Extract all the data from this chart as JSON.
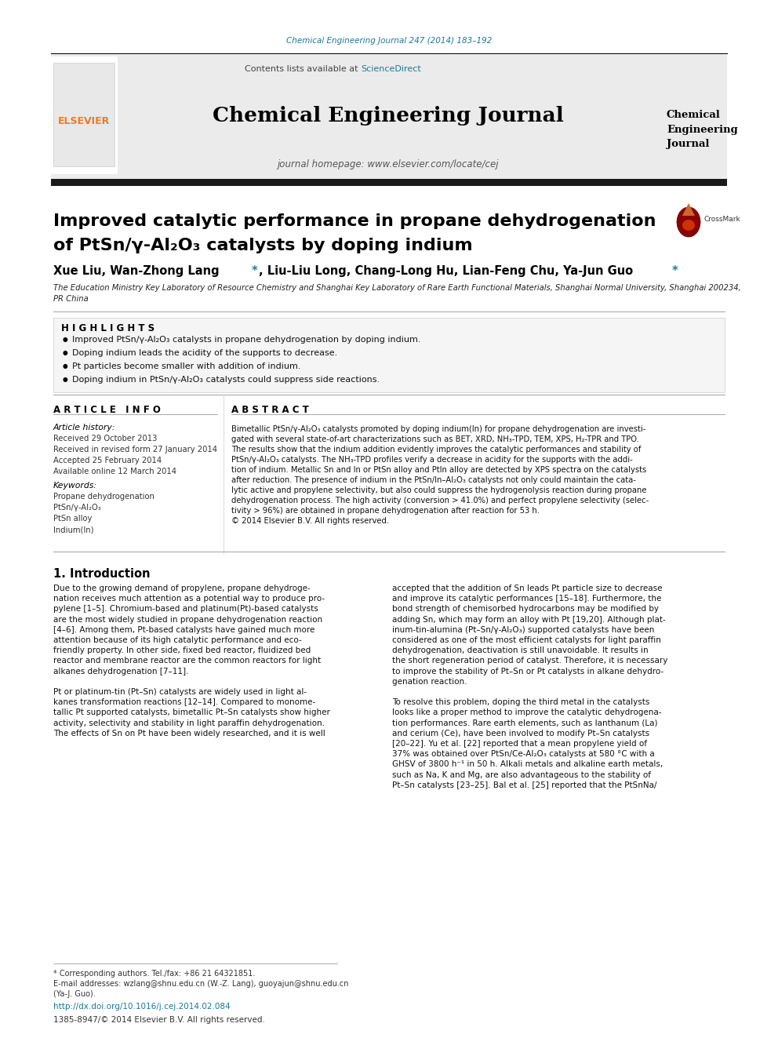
{
  "journal_ref": "Chemical Engineering Journal 247 (2014) 183–192",
  "journal_ref_color": "#1a7a9a",
  "contents_text": "Contents lists available at ",
  "sciencedirect_text": "ScienceDirect",
  "sciencedirect_color": "#1a7a9a",
  "journal_name": "Chemical Engineering Journal",
  "journal_homepage": "journal homepage: www.elsevier.com/locate/cej",
  "journal_logo_text": "Chemical\nEngineering\nJournal",
  "elsevier_color": "#f47920",
  "title_line1": "Improved catalytic performance in propane dehydrogenation",
  "title_line2": "of PtSn/γ-Al₂O₃ catalysts by doping indium",
  "title_color": "#000000",
  "authors_color": "#000000",
  "affiliation": "The Education Ministry Key Laboratory of Resource Chemistry and Shanghai Key Laboratory of Rare Earth Functional Materials, Shanghai Normal University, Shanghai 200234,\nPR China",
  "highlights_title": "H I G H L I G H T S",
  "highlights": [
    "Improved PtSn/γ-Al₂O₃ catalysts in propane dehydrogenation by doping indium.",
    "Doping indium leads the acidity of the supports to decrease.",
    "Pt particles become smaller with addition of indium.",
    "Doping indium in PtSn/γ-Al₂O₃ catalysts could suppress side reactions."
  ],
  "article_info_title": "A R T I C L E   I N F O",
  "article_history_title": "Article history:",
  "received1": "Received 29 October 2013",
  "received2": "Received in revised form 27 January 2014",
  "accepted": "Accepted 25 February 2014",
  "available": "Available online 12 March 2014",
  "keywords_title": "Keywords:",
  "keywords": [
    "Propane dehydrogenation",
    "PtSn/γ-Al₂O₃",
    "PtSn alloy",
    "Indium(In)"
  ],
  "abstract_title": "A B S T R A C T",
  "abstract_lines": [
    "Bimetallic PtSn/γ-Al₂O₃ catalysts promoted by doping indium(In) for propane dehydrogenation are investi-",
    "gated with several state-of-art characterizations such as BET, XRD, NH₃-TPD, TEM, XPS, H₂-TPR and TPO.",
    "The results show that the indium addition evidently improves the catalytic performances and stability of",
    "PtSn/γ-Al₂O₃ catalysts. The NH₃-TPD profiles verify a decrease in acidity for the supports with the addi-",
    "tion of indium. Metallic Sn and In or PtSn alloy and PtIn alloy are detected by XPS spectra on the catalysts",
    "after reduction. The presence of indium in the PtSn/In–Al₂O₃ catalysts not only could maintain the cata-",
    "lytic active and propylene selectivity, but also could suppress the hydrogenolysis reaction during propane",
    "dehydrogenation process. The high activity (conversion > 41.0%) and perfect propylene selectivity (selec-",
    "tivity > 96%) are obtained in propane dehydrogenation after reaction for 53 h.",
    "© 2014 Elsevier B.V. All rights reserved."
  ],
  "intro_title": "1. Introduction",
  "intro_col1_lines": [
    "Due to the growing demand of propylene, propane dehydroge-",
    "nation receives much attention as a potential way to produce pro-",
    "pylene [1–5]. Chromium-based and platinum(Pt)-based catalysts",
    "are the most widely studied in propane dehydrogenation reaction",
    "[4–6]. Among them, Pt-based catalysts have gained much more",
    "attention because of its high catalytic performance and eco-",
    "friendly property. In other side, fixed bed reactor, fluidized bed",
    "reactor and membrane reactor are the common reactors for light",
    "alkanes dehydrogenation [7–11].",
    "",
    "Pt or platinum-tin (Pt–Sn) catalysts are widely used in light al-",
    "kanes transformation reactions [12–14]. Compared to monome-",
    "tallic Pt supported catalysts, bimetallic Pt–Sn catalysts show higher",
    "activity, selectivity and stability in light paraffin dehydrogenation.",
    "The effects of Sn on Pt have been widely researched, and it is well"
  ],
  "intro_col2_lines": [
    "accepted that the addition of Sn leads Pt particle size to decrease",
    "and improve its catalytic performances [15–18]. Furthermore, the",
    "bond strength of chemisorbed hydrocarbons may be modified by",
    "adding Sn, which may form an alloy with Pt [19,20]. Although plat-",
    "inum-tin-alumina (Pt–Sn/γ-Al₂O₃) supported catalysts have been",
    "considered as one of the most efficient catalysts for light paraffin",
    "dehydrogenation, deactivation is still unavoidable. It results in",
    "the short regeneration period of catalyst. Therefore, it is necessary",
    "to improve the stability of Pt–Sn or Pt catalysts in alkane dehydro-",
    "genation reaction.",
    "",
    "To resolve this problem, doping the third metal in the catalysts",
    "looks like a proper method to improve the catalytic dehydrogena-",
    "tion performances. Rare earth elements, such as lanthanum (La)",
    "and cerium (Ce), have been involved to modify Pt–Sn catalysts",
    "[20–22]. Yu et al. [22] reported that a mean propylene yield of",
    "37% was obtained over PtSn/Ce-Al₂O₃ catalysts at 580 °C with a",
    "GHSV of 3800 h⁻¹ in 50 h. Alkali metals and alkaline earth metals,",
    "such as Na, K and Mg, are also advantageous to the stability of",
    "Pt–Sn catalysts [23–25]. Bal et al. [25] reported that the PtSnNa/"
  ],
  "footer_lines": [
    "* Corresponding authors. Tel./fax: +86 21 64321851.",
    "E-mail addresses: wzlang@shnu.edu.cn (W.-Z. Lang), guoyajun@shnu.edu.cn",
    "(Ya-J. Guo)."
  ],
  "doi_text": "http://dx.doi.org/10.1016/j.cej.2014.02.084",
  "doi_color": "#1a7a9a",
  "issn_text": "1385-8947/© 2014 Elsevier B.V. All rights reserved.",
  "bg_color": "#ffffff",
  "header_bg": "#ebebeb",
  "black_bar_color": "#1a1a1a",
  "text_color": "#000000",
  "highlight_box_color": "#f5f5f5"
}
